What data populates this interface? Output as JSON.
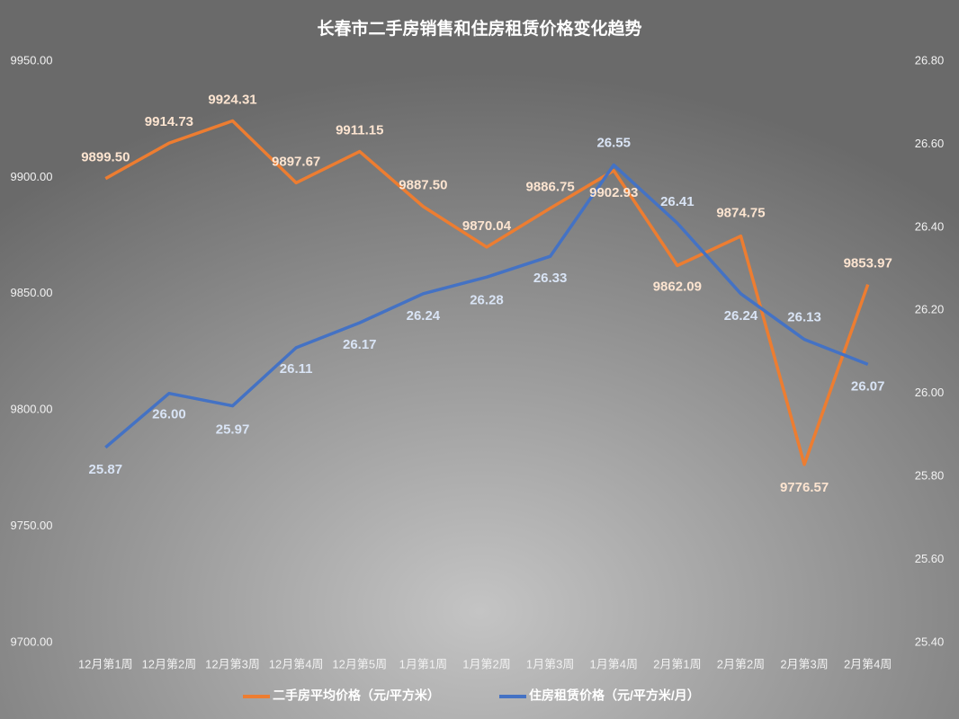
{
  "chart_data": {
    "type": "line",
    "title": "长春市二手房销售和住房租赁价格变化趋势",
    "categories": [
      "12月第1周",
      "12月第2周",
      "12月第3周",
      "12月第4周",
      "12月第5周",
      "1月第1周",
      "1月第2周",
      "1月第3周",
      "1月第4周",
      "2月第1周",
      "2月第2周",
      "2月第3周",
      "2月第4周"
    ],
    "series": [
      {
        "name": "二手房平均价格（元/平方米）",
        "color": "#ed7d31",
        "axis": "y",
        "values": [
          9899.5,
          9914.73,
          9924.31,
          9897.67,
          9911.15,
          9887.5,
          9870.04,
          9886.75,
          9902.93,
          9862.09,
          9874.75,
          9776.57,
          9853.97
        ],
        "value_labels": [
          "9899.50",
          "9914.73",
          "9924.31",
          "9897.67",
          "9911.15",
          "9887.50",
          "9870.04",
          "9886.75",
          "9902.93",
          "9862.09",
          "9874.75",
          "9776.57",
          "9853.97"
        ]
      },
      {
        "name": "住房租赁价格（元/平方米/月）",
        "color": "#4472c4",
        "axis": "y2",
        "values": [
          25.87,
          26.0,
          25.97,
          26.11,
          26.17,
          26.24,
          26.28,
          26.33,
          26.55,
          26.41,
          26.24,
          26.13,
          26.07
        ],
        "value_labels": [
          "25.87",
          "26.00",
          "25.97",
          "26.11",
          "26.17",
          "26.24",
          "26.28",
          "26.33",
          "26.55",
          "26.41",
          "26.24",
          "26.13",
          "26.07"
        ]
      }
    ],
    "ylim": [
      9700,
      9950
    ],
    "yticks": [
      {
        "value": 9700,
        "label": "9700.00"
      },
      {
        "value": 9750,
        "label": "9750.00"
      },
      {
        "value": 9800,
        "label": "9800.00"
      },
      {
        "value": 9850,
        "label": "9850.00"
      },
      {
        "value": 9900,
        "label": "9900.00"
      },
      {
        "value": 9950,
        "label": "9950.00"
      }
    ],
    "y2lim": [
      25.4,
      26.8
    ],
    "y2ticks": [
      {
        "value": 25.4,
        "label": "25.40"
      },
      {
        "value": 25.6,
        "label": "25.60"
      },
      {
        "value": 25.8,
        "label": "25.80"
      },
      {
        "value": 26.0,
        "label": "26.00"
      },
      {
        "value": 26.2,
        "label": "26.20"
      },
      {
        "value": 26.4,
        "label": "26.40"
      },
      {
        "value": 26.6,
        "label": "26.60"
      },
      {
        "value": 26.8,
        "label": "26.80"
      }
    ],
    "grid": false,
    "legend": "bottom"
  }
}
